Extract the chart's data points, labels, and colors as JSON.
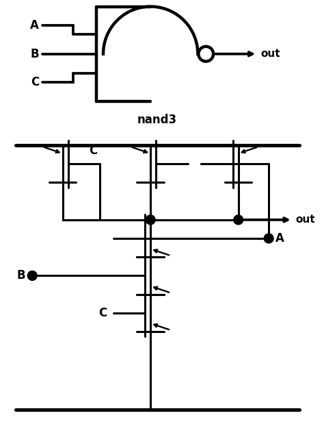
{
  "bg_color": "#ffffff",
  "line_color": "#000000",
  "lw": 2.2,
  "fig_width": 4.74,
  "fig_height": 6.16,
  "dpi": 100,
  "xlim": [
    0,
    47.4
  ],
  "ylim": [
    0,
    61.6
  ]
}
